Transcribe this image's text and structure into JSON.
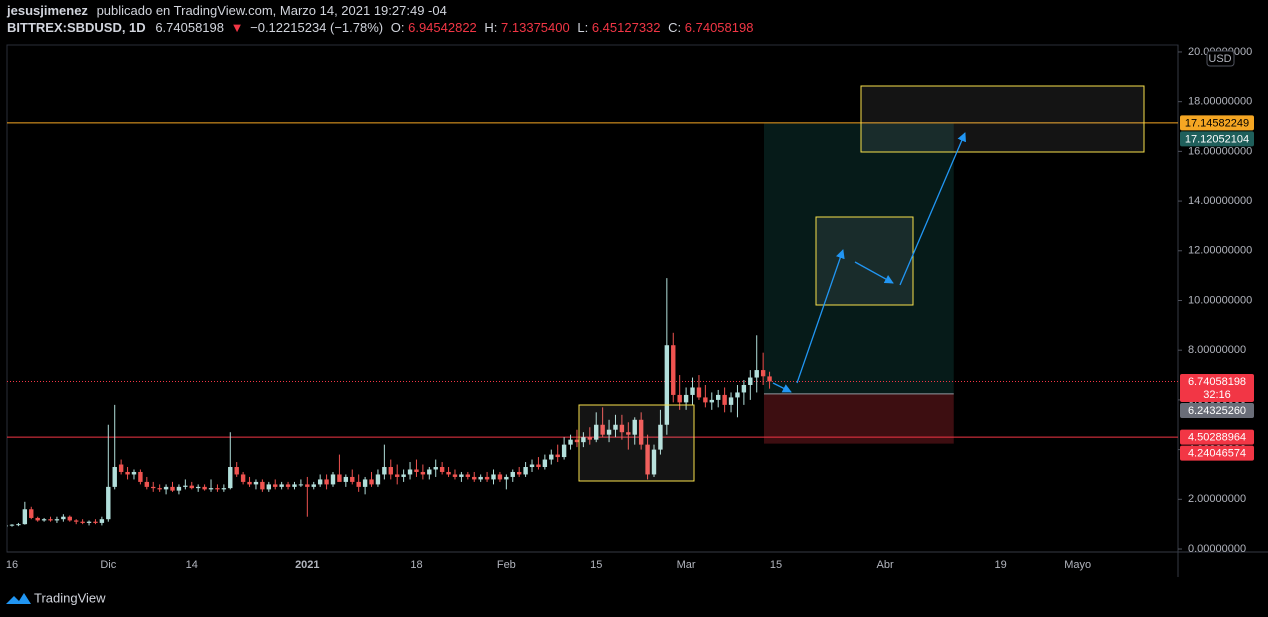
{
  "header": {
    "author": "jesusjimenez",
    "published": "publicado en TradingView.com, Marzo 14, 2021 19:27:49 -04",
    "symbol": "BITTREX:SBDUSD, 1D",
    "last": "6.74058198",
    "arrow": "▼",
    "change": "−0.12215234 (−1.78%)",
    "o_label": "O:",
    "open": "6.94542822",
    "h_label": "H:",
    "high": "7.13375400",
    "l_label": "L:",
    "low": "6.45127332",
    "c_label": "C:",
    "close": "6.74058198"
  },
  "footer": {
    "brand": "TradingView"
  },
  "chart_data": {
    "type": "candlestick",
    "currency": "USD",
    "up_color": "#b2dfdb",
    "down_color": "#ef5350",
    "categories": [
      null,
      "16",
      null,
      null,
      null,
      null,
      null,
      null,
      null,
      null,
      null,
      null,
      null,
      null,
      null,
      null,
      "Dic",
      null,
      null,
      null,
      null,
      null,
      null,
      null,
      null,
      null,
      null,
      null,
      null,
      "14",
      null,
      null,
      null,
      null,
      null,
      null,
      null,
      null,
      null,
      null,
      null,
      null,
      null,
      null,
      null,
      null,
      null,
      "2021",
      null,
      null,
      null,
      null,
      null,
      null,
      null,
      null,
      null,
      null,
      null,
      null,
      null,
      null,
      null,
      null,
      "18",
      null,
      null,
      null,
      null,
      null,
      null,
      null,
      null,
      null,
      null,
      null,
      null,
      null,
      "Feb",
      null,
      null,
      null,
      null,
      null,
      null,
      null,
      null,
      null,
      null,
      null,
      null,
      null,
      "15",
      null,
      null,
      null,
      null,
      null,
      null,
      null,
      null,
      null,
      null,
      null,
      null,
      null,
      "Mar",
      null,
      null,
      null,
      null,
      null,
      null,
      null,
      null,
      null,
      null,
      null,
      null,
      null,
      "15",
      null,
      null,
      null,
      null,
      null,
      null,
      null,
      null,
      null,
      null,
      null,
      null,
      null,
      null,
      null,
      null,
      "Abr",
      null,
      null,
      null,
      null,
      null,
      null,
      null,
      null,
      null,
      null,
      null,
      null,
      null,
      null,
      null,
      null,
      null,
      "19",
      null,
      null,
      null,
      null,
      null,
      null,
      null,
      null,
      null,
      null,
      null,
      "Mayo",
      null,
      null,
      null,
      null,
      null,
      null,
      null,
      null,
      null,
      null,
      null,
      null,
      null,
      null,
      null
    ],
    "ohlc": [
      [
        0.95,
        1.0,
        0.9,
        0.95
      ],
      [
        0.95,
        1.0,
        0.9,
        0.98
      ],
      [
        0.98,
        1.05,
        0.92,
        1.0
      ],
      [
        1.0,
        1.9,
        0.98,
        1.6
      ],
      [
        1.6,
        1.7,
        1.2,
        1.25
      ],
      [
        1.25,
        1.3,
        1.1,
        1.15
      ],
      [
        1.15,
        1.25,
        1.1,
        1.2
      ],
      [
        1.2,
        1.3,
        1.1,
        1.15
      ],
      [
        1.15,
        1.3,
        1.05,
        1.2
      ],
      [
        1.2,
        1.4,
        1.1,
        1.3
      ],
      [
        1.3,
        1.35,
        1.1,
        1.15
      ],
      [
        1.15,
        1.2,
        1.0,
        1.1
      ],
      [
        1.1,
        1.2,
        1.0,
        1.05
      ],
      [
        1.05,
        1.15,
        0.95,
        1.1
      ],
      [
        1.1,
        1.2,
        1.0,
        1.05
      ],
      [
        1.05,
        1.3,
        0.95,
        1.2
      ],
      [
        1.2,
        5.0,
        1.1,
        2.5
      ],
      [
        2.5,
        5.8,
        2.4,
        3.3
      ],
      [
        3.4,
        3.6,
        3.0,
        3.1
      ],
      [
        3.1,
        3.3,
        2.8,
        3.0
      ],
      [
        3.0,
        3.2,
        2.8,
        3.1
      ],
      [
        3.1,
        3.2,
        2.6,
        2.7
      ],
      [
        2.7,
        2.9,
        2.4,
        2.5
      ],
      [
        2.5,
        2.7,
        2.3,
        2.45
      ],
      [
        2.45,
        2.6,
        2.3,
        2.4
      ],
      [
        2.4,
        2.6,
        2.2,
        2.5
      ],
      [
        2.5,
        2.7,
        2.3,
        2.35
      ],
      [
        2.35,
        2.6,
        2.2,
        2.5
      ],
      [
        2.5,
        2.8,
        2.4,
        2.55
      ],
      [
        2.55,
        2.7,
        2.4,
        2.45
      ],
      [
        2.45,
        2.6,
        2.3,
        2.5
      ],
      [
        2.5,
        2.6,
        2.35,
        2.4
      ],
      [
        2.4,
        2.8,
        2.3,
        2.45
      ],
      [
        2.45,
        2.6,
        2.3,
        2.4
      ],
      [
        2.4,
        2.6,
        2.3,
        2.45
      ],
      [
        2.45,
        4.7,
        2.4,
        3.3
      ],
      [
        3.3,
        3.5,
        2.9,
        3.0
      ],
      [
        3.0,
        3.1,
        2.6,
        2.7
      ],
      [
        2.7,
        2.9,
        2.5,
        2.6
      ],
      [
        2.6,
        2.8,
        2.4,
        2.7
      ],
      [
        2.7,
        2.8,
        2.3,
        2.4
      ],
      [
        2.4,
        2.7,
        2.3,
        2.6
      ],
      [
        2.6,
        2.8,
        2.4,
        2.5
      ],
      [
        2.5,
        2.7,
        2.4,
        2.6
      ],
      [
        2.6,
        2.7,
        2.4,
        2.5
      ],
      [
        2.5,
        2.7,
        2.4,
        2.6
      ],
      [
        2.6,
        2.8,
        2.5,
        2.6
      ],
      [
        2.6,
        2.9,
        1.3,
        2.5
      ],
      [
        2.5,
        2.7,
        2.4,
        2.6
      ],
      [
        2.6,
        3.0,
        2.5,
        2.8
      ],
      [
        2.8,
        3.0,
        2.4,
        2.6
      ],
      [
        2.6,
        3.1,
        2.5,
        3.0
      ],
      [
        3.0,
        3.8,
        2.8,
        2.7
      ],
      [
        2.7,
        3.0,
        2.5,
        2.9
      ],
      [
        2.9,
        3.2,
        2.6,
        2.7
      ],
      [
        2.7,
        3.0,
        2.3,
        2.5
      ],
      [
        2.5,
        2.9,
        2.2,
        2.8
      ],
      [
        2.8,
        3.1,
        2.5,
        2.6
      ],
      [
        2.6,
        3.2,
        2.5,
        3.0
      ],
      [
        3.0,
        4.2,
        2.8,
        3.3
      ],
      [
        3.3,
        3.6,
        2.8,
        3.0
      ],
      [
        3.0,
        3.4,
        2.6,
        2.9
      ],
      [
        2.9,
        3.2,
        2.7,
        3.0
      ],
      [
        3.0,
        3.5,
        2.8,
        3.2
      ],
      [
        3.2,
        3.6,
        2.9,
        3.1
      ],
      [
        3.1,
        3.4,
        2.8,
        3.0
      ],
      [
        3.0,
        3.3,
        2.8,
        3.2
      ],
      [
        3.2,
        3.6,
        2.9,
        3.3
      ],
      [
        3.3,
        3.5,
        3.0,
        3.1
      ],
      [
        3.1,
        3.3,
        2.9,
        3.0
      ],
      [
        3.0,
        3.2,
        2.8,
        2.9
      ],
      [
        2.9,
        3.1,
        2.7,
        3.0
      ],
      [
        3.0,
        3.1,
        2.8,
        2.9
      ],
      [
        2.9,
        3.1,
        2.7,
        2.8
      ],
      [
        2.8,
        3.0,
        2.7,
        2.9
      ],
      [
        2.9,
        3.1,
        2.7,
        2.8
      ],
      [
        2.8,
        3.2,
        2.6,
        3.0
      ],
      [
        3.0,
        3.1,
        2.7,
        2.8
      ],
      [
        2.8,
        3.0,
        2.4,
        2.9
      ],
      [
        2.9,
        3.2,
        2.7,
        3.1
      ],
      [
        3.1,
        3.3,
        2.9,
        3.0
      ],
      [
        3.0,
        3.5,
        2.9,
        3.3
      ],
      [
        3.3,
        3.6,
        3.1,
        3.4
      ],
      [
        3.4,
        3.7,
        3.2,
        3.3
      ],
      [
        3.3,
        3.8,
        3.2,
        3.6
      ],
      [
        3.6,
        4.0,
        3.4,
        3.8
      ],
      [
        3.8,
        4.2,
        3.5,
        3.7
      ],
      [
        3.7,
        4.5,
        3.6,
        4.2
      ],
      [
        4.2,
        4.6,
        4.0,
        4.4
      ],
      [
        4.4,
        4.8,
        4.1,
        4.3
      ],
      [
        4.3,
        4.7,
        4.1,
        4.5
      ],
      [
        4.5,
        4.9,
        4.2,
        4.4
      ],
      [
        4.4,
        5.5,
        4.3,
        5.0
      ],
      [
        5.0,
        5.7,
        4.5,
        4.6
      ],
      [
        4.6,
        5.2,
        4.3,
        4.8
      ],
      [
        4.8,
        5.4,
        4.5,
        5.0
      ],
      [
        5.0,
        5.4,
        4.4,
        4.7
      ],
      [
        4.7,
        5.1,
        4.0,
        4.6
      ],
      [
        4.6,
        5.3,
        4.2,
        5.2
      ],
      [
        5.2,
        5.5,
        4.0,
        4.2
      ],
      [
        4.2,
        4.6,
        2.8,
        3.0
      ],
      [
        3.0,
        4.2,
        2.9,
        4.0
      ],
      [
        4.0,
        5.6,
        3.8,
        5.0
      ],
      [
        5.0,
        10.9,
        4.6,
        8.2
      ],
      [
        8.2,
        8.7,
        5.9,
        6.2
      ],
      [
        6.2,
        7.0,
        5.6,
        5.9
      ],
      [
        5.9,
        6.5,
        5.6,
        6.2
      ],
      [
        6.2,
        6.9,
        5.8,
        6.5
      ],
      [
        6.5,
        7.0,
        6.0,
        6.1
      ],
      [
        6.1,
        6.6,
        5.7,
        5.9
      ],
      [
        5.9,
        6.3,
        5.6,
        6.0
      ],
      [
        6.0,
        6.4,
        5.7,
        6.2
      ],
      [
        6.2,
        6.5,
        5.5,
        5.8
      ],
      [
        5.8,
        6.3,
        5.5,
        6.1
      ],
      [
        6.1,
        6.6,
        5.3,
        6.3
      ],
      [
        6.3,
        6.8,
        5.8,
        6.6
      ],
      [
        6.6,
        7.2,
        6.0,
        6.9
      ],
      [
        6.9,
        8.6,
        6.3,
        7.2
      ],
      [
        7.2,
        7.9,
        6.6,
        6.95
      ],
      [
        6.94542822,
        7.133754,
        6.45127332,
        6.74058198
      ],
      null,
      null,
      null,
      null,
      null,
      null,
      null,
      null,
      null,
      null,
      null,
      null,
      null,
      null,
      null,
      null,
      null,
      null,
      null,
      null,
      null,
      null,
      null,
      null,
      null,
      null,
      null,
      null,
      null,
      null,
      null,
      null,
      null,
      null,
      null,
      null,
      null,
      null,
      null,
      null,
      null,
      null,
      null,
      null,
      null,
      null,
      null,
      null,
      null,
      null,
      null,
      null,
      null,
      null,
      null,
      null,
      null,
      null,
      null,
      null,
      null,
      null,
      null
    ],
    "ylim": [
      -0.12,
      20.28
    ],
    "yticks": [
      {
        "value": 0,
        "label": "0.00000000"
      },
      {
        "value": 2,
        "label": "2.00000000"
      },
      {
        "value": 4,
        "label": "4.00000000"
      },
      {
        "value": 6,
        "label": "6.00000000"
      },
      {
        "value": 8,
        "label": "8.00000000"
      },
      {
        "value": 10,
        "label": "10.00000000"
      },
      {
        "value": 12,
        "label": "12.00000000"
      },
      {
        "value": 14,
        "label": "14.00000000"
      },
      {
        "value": 16,
        "label": "16.00000000"
      },
      {
        "value": 18,
        "label": "18.00000000"
      },
      {
        "value": 20,
        "label": "20.00000000"
      }
    ],
    "countdown": "32:16",
    "price_labels": [
      {
        "value": 17.14582249,
        "color": "#f5a623",
        "text_color": "#000000"
      },
      {
        "value": 17.12052104,
        "color": "#1f5f5b",
        "text_color": "#ffffff"
      },
      {
        "value": 6.74058198,
        "color": "#f23645",
        "text_color": "#ffffff"
      },
      {
        "value": 6.2432526,
        "label": "6.24325260",
        "color": "#6a6d78",
        "text_color": "#ffffff"
      },
      {
        "value": 4.50288964,
        "color": "#f23645",
        "text_color": "#ffffff"
      },
      {
        "value": 4.24046574,
        "color": "#f23645",
        "text_color": "#ffffff"
      }
    ]
  }
}
